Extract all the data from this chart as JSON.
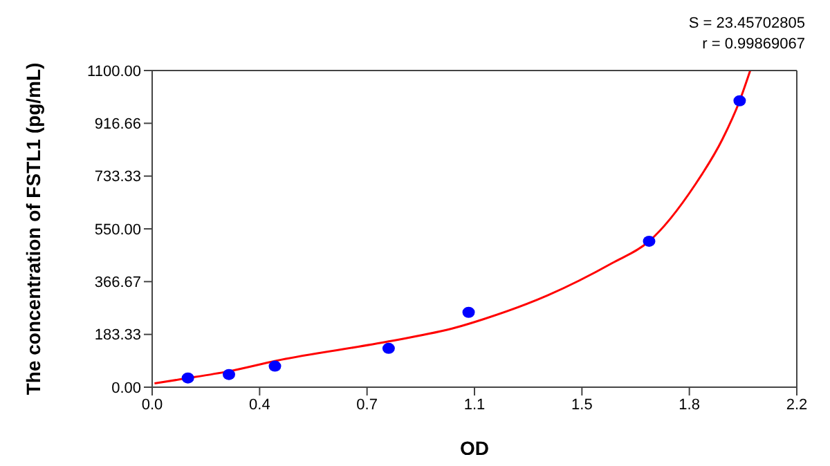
{
  "chart_data": {
    "type": "scatter",
    "xlabel": "OD",
    "ylabel": "The concentration of FSTL1 (pg/mL)",
    "annotations": [
      "S = 23.45702805",
      "r = 0.99869067"
    ],
    "series": [
      {
        "type": "scatter",
        "color": "#0000ff",
        "marker": "circle",
        "x": [
          0.122,
          0.262,
          0.419,
          0.807,
          1.08,
          1.696,
          2.005
        ],
        "values": [
          32,
          44,
          73,
          135,
          260,
          507,
          995
        ]
      },
      {
        "type": "line",
        "color": "#ff0000",
        "marker": "none",
        "line_style": "solid",
        "x": [
          0.008,
          0.1,
          0.26,
          0.424,
          0.807,
          1.036,
          1.13,
          1.35,
          1.57,
          1.696,
          1.852,
          1.946,
          2.005,
          2.041
        ],
        "values": [
          13,
          28,
          55,
          92,
          159,
          207,
          236,
          319,
          431,
          507,
          702,
          861,
          995,
          1100
        ]
      }
    ],
    "xlim": [
      0,
      2.2
    ],
    "xticks": [
      {
        "value": 0,
        "label": "0.0"
      },
      {
        "value": 0.3667,
        "label": "0.4"
      },
      {
        "value": 0.7333,
        "label": "0.7"
      },
      {
        "value": 1.1,
        "label": "1.1"
      },
      {
        "value": 1.4667,
        "label": "1.5"
      },
      {
        "value": 1.8333,
        "label": "1.8"
      },
      {
        "value": 2.2,
        "label": "2.2"
      }
    ],
    "ylim": [
      0,
      1100
    ],
    "yticks": [
      {
        "value": 0,
        "label": "0.00"
      },
      {
        "value": 183.33,
        "label": "183.33"
      },
      {
        "value": 366.67,
        "label": "366.67"
      },
      {
        "value": 550,
        "label": "550.00"
      },
      {
        "value": 733.33,
        "label": "733.33"
      },
      {
        "value": 916.66,
        "label": "916.66"
      },
      {
        "value": 1100,
        "label": "1100.00"
      }
    ]
  }
}
